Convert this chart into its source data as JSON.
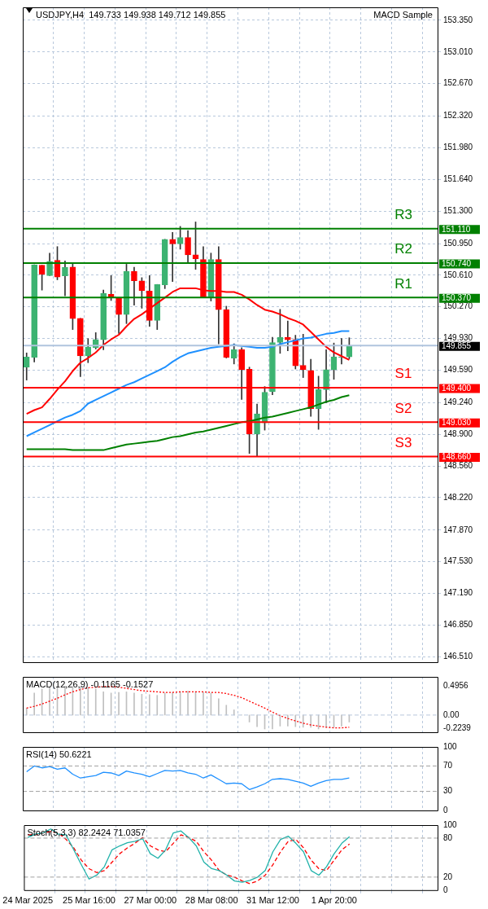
{
  "chart_data": [
    {
      "type": "candlestick",
      "title": "USDJPY,H4  149.733 149.938 149.712 149.855",
      "annotations": [
        "MACD Sample",
        "151.110",
        "150.740",
        "150.370",
        "149.855",
        "149.400",
        "149.030",
        "148.660"
      ],
      "categories": [
        null,
        null,
        null,
        null,
        null,
        null,
        null,
        null,
        null,
        null,
        null,
        null,
        null,
        null,
        null,
        null,
        null,
        null,
        null,
        null,
        null,
        null,
        null,
        null,
        null,
        null,
        null,
        null,
        null,
        null,
        null,
        null,
        null,
        null,
        null,
        null,
        null,
        null,
        null,
        null,
        null,
        null,
        null,
        null,
        null,
        null,
        null,
        null,
        null,
        null,
        null,
        null,
        null,
        null
      ],
      "ohlc": [
        [
          149.62,
          149.775,
          149.483,
          149.73
        ],
        [
          149.728,
          150.723,
          149.678,
          150.723
        ],
        [
          150.717,
          150.717,
          150.45,
          150.62
        ],
        [
          150.606,
          150.848,
          150.606,
          150.759
        ],
        [
          150.77,
          150.918,
          150.561,
          150.59
        ],
        [
          150.603,
          150.765,
          150.388,
          150.695
        ],
        [
          150.698,
          150.745,
          150.026,
          150.143
        ],
        [
          150.146,
          150.146,
          149.519,
          149.742
        ],
        [
          149.742,
          149.929,
          149.67,
          149.837
        ],
        [
          149.831,
          149.993,
          149.817,
          149.92
        ],
        [
          149.915,
          150.45,
          149.809,
          150.416
        ],
        [
          150.405,
          150.606,
          150.338,
          150.366
        ],
        [
          150.369,
          150.369,
          149.984,
          150.188
        ],
        [
          150.188,
          150.728,
          150.09,
          150.653
        ],
        [
          150.653,
          150.695,
          150.288,
          150.55
        ],
        [
          150.55,
          150.584,
          150.255,
          150.444
        ],
        [
          150.439,
          150.606,
          150.06,
          150.124
        ],
        [
          150.124,
          150.511,
          150.026,
          150.511
        ],
        [
          150.506,
          150.996,
          150.466,
          150.996
        ],
        [
          150.996,
          151.071,
          150.542,
          150.946
        ],
        [
          150.946,
          151.135,
          150.89,
          151.015
        ],
        [
          151.015,
          151.091,
          150.745,
          150.829
        ],
        [
          150.829,
          151.183,
          150.673,
          150.787
        ],
        [
          150.779,
          150.918,
          150.372,
          150.372
        ],
        [
          150.372,
          150.848,
          150.333,
          150.779
        ],
        [
          150.779,
          150.918,
          149.873,
          150.241
        ],
        [
          150.241,
          150.277,
          149.72,
          149.728
        ],
        [
          149.72,
          149.873,
          149.656,
          149.809
        ],
        [
          149.809,
          149.831,
          149.274,
          149.594
        ],
        [
          149.6,
          149.622,
          148.694,
          148.903
        ],
        [
          148.903,
          149.226,
          148.666,
          149.12
        ],
        [
          149.023,
          149.413,
          148.945,
          149.352
        ],
        [
          149.357,
          149.943,
          149.324,
          149.887
        ],
        [
          149.887,
          150.243,
          149.77,
          149.943
        ],
        [
          149.943,
          150.118,
          149.798,
          149.915
        ],
        [
          149.92,
          149.965,
          149.602,
          149.636
        ],
        [
          149.642,
          149.976,
          149.51,
          149.594
        ],
        [
          149.586,
          149.706,
          149.093,
          149.176
        ],
        [
          149.176,
          149.525,
          148.953,
          149.38
        ],
        [
          149.38,
          149.809,
          149.24,
          149.594
        ],
        [
          149.594,
          149.881,
          149.491,
          149.733
        ],
        [
          149.725,
          149.929,
          149.656,
          149.733
        ],
        [
          149.733,
          149.938,
          149.712,
          149.855
        ],
        null,
        null,
        null,
        null,
        null,
        null,
        null,
        null,
        null,
        null,
        null
      ],
      "colors": [
        "#3cb371",
        "#3cb371",
        "#ff0000",
        "#3cb371",
        "#ff0000",
        "#3cb371",
        "#ff0000",
        "#ff0000",
        "#3cb371",
        "#3cb371",
        "#3cb371",
        "#ff0000",
        "#ff0000",
        "#3cb371",
        "#ff0000",
        "#ff0000",
        "#ff0000",
        "#3cb371",
        "#3cb371",
        "#ff0000",
        "#3cb371",
        "#ff0000",
        "#ff0000",
        "#ff0000",
        "#3cb371",
        "#ff0000",
        "#ff0000",
        "#3cb371",
        "#ff0000",
        "#ff0000",
        "#3cb371",
        "#3cb371",
        "#3cb371",
        "#3cb371",
        "#ff0000",
        "#ff0000",
        "#ff0000",
        "#ff0000",
        "#3cb371",
        "#3cb371",
        "#3cb371",
        "#3cb371",
        "#3cb371",
        null,
        null,
        null,
        null,
        null,
        null,
        null,
        null,
        null,
        null,
        null
      ],
      "series": [
        {
          "type": "line",
          "color": "#ff0000",
          "values": [
            149.12,
            149.16,
            149.19,
            149.28,
            149.38,
            149.47,
            149.58,
            149.67,
            149.72,
            149.78,
            149.86,
            149.92,
            149.97,
            150.06,
            150.14,
            150.19,
            150.25,
            150.31,
            150.37,
            150.43,
            150.47,
            150.47,
            150.47,
            150.45,
            150.44,
            150.44,
            150.43,
            150.43,
            150.4,
            150.35,
            150.29,
            150.24,
            150.22,
            150.19,
            150.15,
            150.12,
            150.08,
            150.0,
            149.92,
            149.84,
            149.78,
            149.74,
            149.7,
            null,
            null,
            null,
            null,
            null,
            null,
            null,
            null,
            null,
            null,
            null
          ]
        },
        {
          "type": "line",
          "color": "#1e90ff",
          "values": [
            148.88,
            148.92,
            148.96,
            149.0,
            149.04,
            149.08,
            149.11,
            149.15,
            149.23,
            149.27,
            149.31,
            149.35,
            149.39,
            149.43,
            149.46,
            149.5,
            149.54,
            149.58,
            149.62,
            149.68,
            149.73,
            149.77,
            149.79,
            149.81,
            149.83,
            149.84,
            149.85,
            149.86,
            149.85,
            149.84,
            149.83,
            149.83,
            149.84,
            149.87,
            149.89,
            149.91,
            149.93,
            149.94,
            149.96,
            149.98,
            149.99,
            150.01,
            150.01,
            null,
            null,
            null,
            null,
            null,
            null,
            null,
            null,
            null,
            null,
            null
          ]
        },
        {
          "type": "line",
          "color": "#008000",
          "values": [
            148.74,
            148.74,
            148.74,
            148.74,
            148.74,
            148.74,
            148.73,
            148.73,
            148.73,
            148.73,
            148.73,
            148.75,
            148.77,
            148.79,
            148.8,
            148.81,
            148.82,
            148.83,
            148.85,
            148.87,
            148.88,
            148.9,
            148.92,
            148.93,
            148.95,
            148.97,
            148.99,
            149.01,
            149.03,
            149.04,
            149.06,
            149.08,
            149.09,
            149.11,
            149.13,
            149.15,
            149.17,
            149.19,
            149.22,
            149.25,
            149.27,
            149.3,
            149.32,
            null,
            null,
            null,
            null,
            null,
            null,
            null,
            null,
            null,
            null,
            null
          ]
        }
      ],
      "ylim": [
        146.45,
        153.49
      ],
      "yticks": [
        {
          "value": 153.35,
          "label": "153.350"
        },
        {
          "value": 153.01,
          "label": "153.010"
        },
        {
          "value": 152.67,
          "label": "152.670"
        },
        {
          "value": 152.32,
          "label": "152.320"
        },
        {
          "value": 151.98,
          "label": "151.980"
        },
        {
          "value": 151.64,
          "label": "151.640"
        },
        {
          "value": 151.3,
          "label": "151.300"
        },
        {
          "value": 150.95,
          "label": "150.950"
        },
        {
          "value": 150.61,
          "label": "150.610"
        },
        {
          "value": 150.27,
          "label": "150.270"
        },
        {
          "value": 149.93,
          "label": "149.930"
        },
        {
          "value": 149.59,
          "label": "149.590"
        },
        {
          "value": 149.24,
          "label": "149.240"
        },
        {
          "value": 148.9,
          "label": "148.900"
        },
        {
          "value": 148.56,
          "label": "148.560"
        },
        {
          "value": 148.22,
          "label": "148.220"
        },
        {
          "value": 147.87,
          "label": "147.870"
        },
        {
          "value": 147.53,
          "label": "147.530"
        },
        {
          "value": 147.19,
          "label": "147.190"
        },
        {
          "value": 146.85,
          "label": "146.850"
        },
        {
          "value": 146.51,
          "label": "146.510"
        }
      ],
      "ref_lines": [
        {
          "axis": "y",
          "value": 151.11,
          "label": "R3",
          "color": "#008000"
        },
        {
          "axis": "y",
          "value": 150.74,
          "label": "R2",
          "color": "#008000"
        },
        {
          "axis": "y",
          "value": 150.37,
          "label": "R1",
          "color": "#008000"
        },
        {
          "axis": "y",
          "value": 149.855,
          "color": "#b0c4de"
        },
        {
          "axis": "y",
          "value": 149.4,
          "label": "S1",
          "color": "#ff0000"
        },
        {
          "axis": "y",
          "value": 149.03,
          "label": "S2",
          "color": "#ff0000"
        },
        {
          "axis": "y",
          "value": 148.66,
          "label": "S3",
          "color": "#ff0000"
        }
      ],
      "grid": true,
      "legend": false,
      "tick_labels": "y"
    },
    {
      "type": "bar",
      "title": "MACD(12,26,9) -0.1165 -0.1527",
      "categories": [
        null,
        null,
        null,
        null,
        null,
        null,
        null,
        null,
        null,
        null,
        null,
        null,
        null,
        null,
        null,
        null,
        null,
        null,
        null,
        null,
        null,
        null,
        null,
        null,
        null,
        null,
        null,
        null,
        null,
        null,
        null,
        null,
        null,
        null,
        null,
        null,
        null,
        null,
        null,
        null,
        null,
        null,
        null,
        null,
        null,
        null,
        null,
        null,
        null,
        null,
        null,
        null,
        null,
        null
      ],
      "series": [
        {
          "type": "bar",
          "color": "#c0c0c0",
          "values": [
            0.12,
            0.38,
            0.45,
            0.47,
            0.49,
            0.5,
            0.49,
            0.49,
            0.47,
            0.45,
            0.4,
            0.38,
            0.39,
            0.4,
            0.38,
            0.36,
            0.35,
            0.34,
            0.38,
            0.39,
            0.4,
            0.41,
            0.4,
            0.39,
            0.38,
            0.28,
            0.17,
            0.09,
            0,
            -0.12,
            -0.2,
            -0.24,
            -0.24,
            -0.19,
            -0.19,
            -0.2,
            -0.21,
            -0.21,
            -0.24,
            -0.21,
            -0.21,
            -0.19,
            -0.12,
            null,
            null,
            null,
            null,
            null,
            null,
            null,
            null,
            null,
            null,
            null
          ]
        },
        {
          "type": "line",
          "color": "#ff0000",
          "line_style": "dotted",
          "values": [
            0.12,
            0.15,
            0.19,
            0.24,
            0.29,
            0.35,
            0.4,
            0.44,
            0.47,
            0.48,
            0.49,
            0.49,
            0.48,
            0.46,
            0.44,
            0.42,
            0.41,
            0.4,
            0.39,
            0.39,
            0.4,
            0.4,
            0.4,
            0.4,
            0.39,
            0.39,
            0.37,
            0.34,
            0.3,
            0.24,
            0.18,
            0.12,
            0.05,
            -0.01,
            -0.06,
            -0.1,
            -0.14,
            -0.17,
            -0.19,
            -0.21,
            -0.22,
            -0.22,
            -0.21,
            null,
            null,
            null,
            null,
            null,
            null,
            null,
            null,
            null,
            null,
            null
          ]
        }
      ],
      "ylim": [
        -0.296,
        0.658
      ],
      "yticks": [
        0.4956,
        {
          "value": 0,
          "label": "0.00"
        },
        -0.2239
      ],
      "ref_lines": [
        {
          "axis": "y",
          "value": 0,
          "color": "#b8c8dc",
          "line_style": "dashed"
        }
      ],
      "grid": "x",
      "legend": false,
      "tick_labels": "y"
    },
    {
      "type": "line",
      "title": "RSI(14) 50.6221",
      "categories": [
        null,
        null,
        null,
        null,
        null,
        null,
        null,
        null,
        null,
        null,
        null,
        null,
        null,
        null,
        null,
        null,
        null,
        null,
        null,
        null,
        null,
        null,
        null,
        null,
        null,
        null,
        null,
        null,
        null,
        null,
        null,
        null,
        null,
        null,
        null,
        null,
        null,
        null,
        null,
        null,
        null,
        null,
        null,
        null,
        null,
        null,
        null,
        null,
        null,
        null,
        null,
        null,
        null,
        null
      ],
      "series": [
        {
          "color": "#1e90ff",
          "values": [
            61,
            70,
            67,
            69,
            65,
            67,
            57,
            51,
            53,
            55,
            60,
            59,
            55,
            62,
            59,
            57,
            53,
            58,
            63,
            62,
            63,
            59,
            57,
            51,
            56,
            49,
            42,
            43,
            42,
            33,
            37,
            42,
            49,
            50,
            49,
            46,
            43,
            38,
            43,
            47,
            49,
            49,
            51,
            null,
            null,
            null,
            null,
            null,
            null,
            null,
            null,
            null,
            null,
            null
          ]
        }
      ],
      "ylim": [
        0,
        100
      ],
      "yticks": [
        100,
        70,
        30,
        0
      ],
      "ref_lines": [
        {
          "axis": "y",
          "value": 70,
          "color": "#a0a0a0",
          "line_style": "dashed"
        },
        {
          "axis": "y",
          "value": 30,
          "color": "#a0a0a0",
          "line_style": "dashed"
        }
      ],
      "grid": "x",
      "legend": false,
      "tick_labels": "y"
    },
    {
      "type": "line",
      "title": "Stoch(5,3,3) 82.2424 71.0357",
      "categories": [
        "24 Mar 2025",
        null,
        null,
        null,
        null,
        null,
        null,
        null,
        "25 Mar 16:00",
        null,
        null,
        null,
        null,
        null,
        null,
        null,
        "27 Mar 00:00",
        null,
        null,
        null,
        null,
        null,
        null,
        null,
        "28 Mar 08:00",
        null,
        null,
        null,
        null,
        null,
        null,
        null,
        "31 Mar 12:00",
        null,
        null,
        null,
        null,
        null,
        null,
        null,
        "1 Apr 20:00",
        null,
        null,
        null,
        null,
        null,
        null,
        null,
        null,
        null,
        null,
        null,
        null,
        null
      ],
      "series": [
        {
          "color": "#20b2aa",
          "values": [
            81,
            86,
            88,
            94,
            86,
            85,
            62,
            39,
            17,
            23,
            36,
            62,
            68,
            73,
            75,
            79,
            56,
            49,
            62,
            88,
            91,
            81,
            68,
            43,
            33,
            30,
            23,
            14,
            12,
            15,
            20,
            30,
            59,
            78,
            83,
            72,
            59,
            30,
            23,
            36,
            56,
            72,
            82,
            null,
            null,
            null,
            null,
            null,
            null,
            null,
            null,
            null,
            null,
            null
          ]
        },
        {
          "color": "#ff0000",
          "line_style": "dashed",
          "values": [
            85,
            85,
            88,
            90,
            88,
            78,
            65,
            46,
            33,
            27,
            30,
            43,
            56,
            65,
            72,
            81,
            68,
            62,
            59,
            72,
            85,
            81,
            75,
            59,
            46,
            30,
            23,
            20,
            14,
            10,
            14,
            23,
            39,
            59,
            75,
            78,
            65,
            46,
            33,
            30,
            46,
            62,
            71,
            null,
            null,
            null,
            null,
            null,
            null,
            null,
            null,
            null,
            null,
            null
          ]
        }
      ],
      "ylim": [
        0,
        100
      ],
      "yticks": [
        100,
        80,
        20,
        0
      ],
      "ref_lines": [
        {
          "axis": "y",
          "value": 80,
          "color": "#a0a0a0",
          "line_style": "dashed"
        },
        {
          "axis": "y",
          "value": 20,
          "color": "#a0a0a0",
          "line_style": "dashed"
        }
      ],
      "grid": "x",
      "legend": false
    }
  ]
}
